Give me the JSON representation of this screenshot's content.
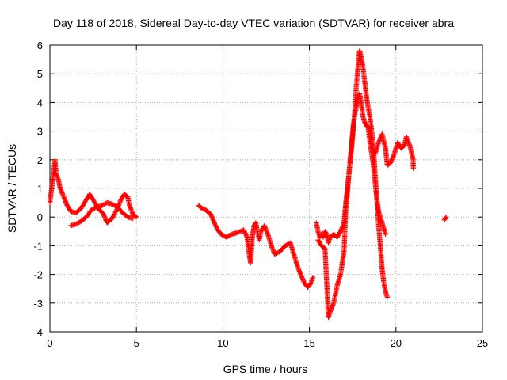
{
  "chart_data": {
    "type": "scatter",
    "title": "Day 118 of 2018, Sidereal Day-to-day VTEC variation (SDTVAR) for receiver abra",
    "xlabel": "GPS time / hours",
    "ylabel": "SDTVAR / TECUs",
    "xlim": [
      0,
      25
    ],
    "ylim": [
      -4,
      6
    ],
    "xticks": [
      0,
      5,
      10,
      15,
      20,
      25
    ],
    "yticks": [
      -4,
      -3,
      -2,
      -1,
      0,
      1,
      2,
      3,
      4,
      5,
      6
    ],
    "grid": true,
    "marker": "+",
    "color": "#ff0000",
    "segments": [
      {
        "name": "segment-1a",
        "points": [
          [
            0.0,
            0.5
          ],
          [
            0.3,
            2.0
          ],
          [
            0.35,
            1.5
          ],
          [
            0.45,
            1.4
          ],
          [
            0.6,
            1.0
          ],
          [
            0.8,
            0.7
          ],
          [
            1.0,
            0.4
          ],
          [
            1.2,
            0.2
          ],
          [
            1.5,
            0.15
          ],
          [
            1.8,
            0.3
          ],
          [
            2.1,
            0.6
          ],
          [
            2.3,
            0.8
          ],
          [
            2.5,
            0.6
          ],
          [
            2.8,
            0.3
          ],
          [
            3.1,
            0.1
          ],
          [
            3.3,
            -0.2
          ],
          [
            3.6,
            -0.05
          ],
          [
            3.9,
            0.3
          ],
          [
            4.1,
            0.6
          ],
          [
            4.3,
            0.8
          ],
          [
            4.5,
            0.7
          ],
          [
            4.6,
            0.4
          ],
          [
            4.8,
            0.1
          ],
          [
            5.0,
            0.0
          ]
        ]
      },
      {
        "name": "segment-1b",
        "points": [
          [
            1.2,
            -0.3
          ],
          [
            1.5,
            -0.25
          ],
          [
            1.8,
            -0.15
          ],
          [
            2.1,
            0.0
          ],
          [
            2.4,
            0.25
          ],
          [
            2.7,
            0.35
          ],
          [
            3.0,
            0.4
          ],
          [
            3.3,
            0.5
          ],
          [
            3.6,
            0.45
          ],
          [
            3.9,
            0.35
          ],
          [
            4.2,
            0.15
          ],
          [
            4.5,
            0.0
          ],
          [
            4.8,
            -0.05
          ]
        ]
      },
      {
        "name": "segment-2",
        "points": [
          [
            8.6,
            0.4
          ],
          [
            8.8,
            0.3
          ],
          [
            9.0,
            0.25
          ],
          [
            9.3,
            0.1
          ],
          [
            9.5,
            -0.2
          ],
          [
            9.7,
            -0.45
          ],
          [
            9.9,
            -0.6
          ],
          [
            10.2,
            -0.7
          ],
          [
            10.5,
            -0.6
          ],
          [
            10.8,
            -0.55
          ],
          [
            11.0,
            -0.5
          ],
          [
            11.2,
            -0.45
          ],
          [
            11.4,
            -0.7
          ],
          [
            11.5,
            -1.2
          ],
          [
            11.6,
            -1.6
          ],
          [
            11.7,
            -0.7
          ],
          [
            11.8,
            -0.3
          ],
          [
            11.9,
            -0.2
          ],
          [
            12.0,
            -0.5
          ],
          [
            12.1,
            -0.8
          ],
          [
            12.2,
            -0.5
          ],
          [
            12.4,
            -0.3
          ],
          [
            12.6,
            -0.6
          ],
          [
            12.8,
            -1.0
          ],
          [
            13.0,
            -1.3
          ],
          [
            13.3,
            -1.2
          ],
          [
            13.6,
            -1.0
          ],
          [
            13.9,
            -0.9
          ],
          [
            14.1,
            -1.3
          ],
          [
            14.3,
            -1.7
          ],
          [
            14.5,
            -2.0
          ],
          [
            14.7,
            -2.3
          ],
          [
            14.9,
            -2.45
          ],
          [
            15.1,
            -2.3
          ],
          [
            15.2,
            -2.1
          ]
        ]
      },
      {
        "name": "segment-3a",
        "points": [
          [
            15.4,
            -0.2
          ],
          [
            15.5,
            -0.5
          ],
          [
            15.6,
            -0.7
          ],
          [
            15.7,
            -0.6
          ],
          [
            15.8,
            -0.7
          ],
          [
            15.9,
            -0.5
          ],
          [
            16.0,
            -0.6
          ],
          [
            16.1,
            -0.9
          ],
          [
            16.2,
            -0.7
          ],
          [
            16.4,
            -0.6
          ],
          [
            16.6,
            -0.7
          ],
          [
            16.8,
            -0.5
          ],
          [
            17.0,
            -0.2
          ],
          [
            17.1,
            0.5
          ],
          [
            17.2,
            1.0
          ],
          [
            17.3,
            1.6
          ],
          [
            17.4,
            2.3
          ],
          [
            17.5,
            3.0
          ],
          [
            17.6,
            3.5
          ],
          [
            17.7,
            3.8
          ],
          [
            17.8,
            4.0
          ],
          [
            17.9,
            4.3
          ],
          [
            18.0,
            4.0
          ],
          [
            18.1,
            3.5
          ],
          [
            18.2,
            3.3
          ],
          [
            18.4,
            3.1
          ],
          [
            18.5,
            2.6
          ],
          [
            18.6,
            2.2
          ],
          [
            18.7,
            1.8
          ],
          [
            18.8,
            1.2
          ],
          [
            18.9,
            0.6
          ],
          [
            19.0,
            0.2
          ],
          [
            19.2,
            -0.2
          ],
          [
            19.4,
            -0.6
          ]
        ]
      },
      {
        "name": "segment-3b",
        "points": [
          [
            15.5,
            -0.8
          ],
          [
            15.7,
            -1.0
          ],
          [
            15.9,
            -1.1
          ],
          [
            16.1,
            -3.5
          ],
          [
            16.2,
            -3.3
          ],
          [
            16.4,
            -3.0
          ],
          [
            16.6,
            -2.4
          ],
          [
            16.8,
            -2.0
          ],
          [
            17.0,
            -1.2
          ],
          [
            17.1,
            0.2
          ],
          [
            17.3,
            1.6
          ],
          [
            17.5,
            2.8
          ],
          [
            17.6,
            3.5
          ],
          [
            17.7,
            4.5
          ],
          [
            17.8,
            5.2
          ],
          [
            17.9,
            5.8
          ],
          [
            18.0,
            5.6
          ],
          [
            18.1,
            5.2
          ],
          [
            18.2,
            4.7
          ],
          [
            18.3,
            4.2
          ],
          [
            18.4,
            3.8
          ],
          [
            18.5,
            3.5
          ],
          [
            18.6,
            3.0
          ],
          [
            18.7,
            2.4
          ],
          [
            18.8,
            1.5
          ],
          [
            18.9,
            0.6
          ],
          [
            19.0,
            -0.3
          ],
          [
            19.1,
            -1.0
          ],
          [
            19.2,
            -1.8
          ],
          [
            19.3,
            -2.3
          ],
          [
            19.4,
            -2.6
          ],
          [
            19.5,
            -2.8
          ]
        ]
      },
      {
        "name": "segment-3c",
        "points": [
          [
            18.8,
            2.2
          ],
          [
            19.0,
            2.6
          ],
          [
            19.2,
            2.9
          ],
          [
            19.4,
            2.4
          ],
          [
            19.5,
            1.8
          ],
          [
            19.7,
            1.9
          ],
          [
            19.9,
            2.2
          ],
          [
            20.1,
            2.6
          ],
          [
            20.3,
            2.4
          ],
          [
            20.5,
            2.5
          ],
          [
            20.6,
            2.8
          ],
          [
            20.8,
            2.5
          ],
          [
            21.0,
            2.0
          ],
          [
            21.0,
            1.7
          ]
        ]
      },
      {
        "name": "segment-4",
        "points": [
          [
            22.8,
            -0.1
          ],
          [
            22.9,
            0.0
          ]
        ]
      }
    ]
  }
}
